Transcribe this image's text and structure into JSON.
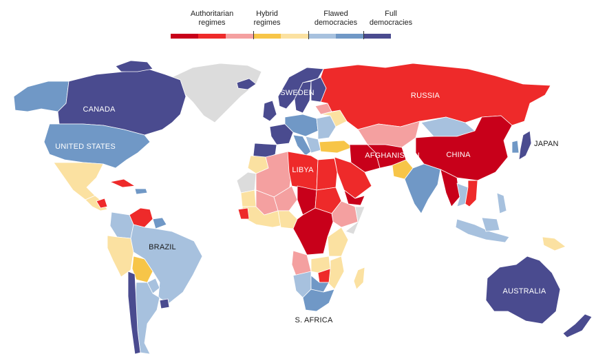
{
  "legend": {
    "categories": [
      {
        "label": "Authoritarian\nregimes",
        "colors": [
          "#c8001a",
          "#ee2a2a",
          "#f4a0a0"
        ]
      },
      {
        "label": "Hybrid\nregimes",
        "colors": [
          "#f7c548",
          "#fbe1a1"
        ]
      },
      {
        "label": "Flawed\ndemocracies",
        "colors": [
          "#a7c1de",
          "#7098c6"
        ]
      },
      {
        "label": "Full\ndemocracies",
        "colors": [
          "#4a4b8f"
        ]
      }
    ]
  },
  "colors": {
    "auth_dark": "#c8001a",
    "auth_mid": "#ee2a2a",
    "auth_light": "#f4a0a0",
    "hybrid_dark": "#f7c548",
    "hybrid_light": "#fbe1a1",
    "flawed_light": "#a7c1de",
    "flawed_dark": "#7098c6",
    "full": "#4a4b8f",
    "no_data": "#dcdcdc"
  },
  "labels": {
    "canada": "CANADA",
    "united_states": "UNITED STATES",
    "brazil": "BRAZIL",
    "sweden": "SWEDEN",
    "russia": "RUSSIA",
    "libya": "LIBYA",
    "afghanistan": "AFGHANISTAN",
    "china": "CHINA",
    "japan": "JAPAN",
    "australia": "AUSTRALIA",
    "south_africa": "S. AFRICA"
  }
}
